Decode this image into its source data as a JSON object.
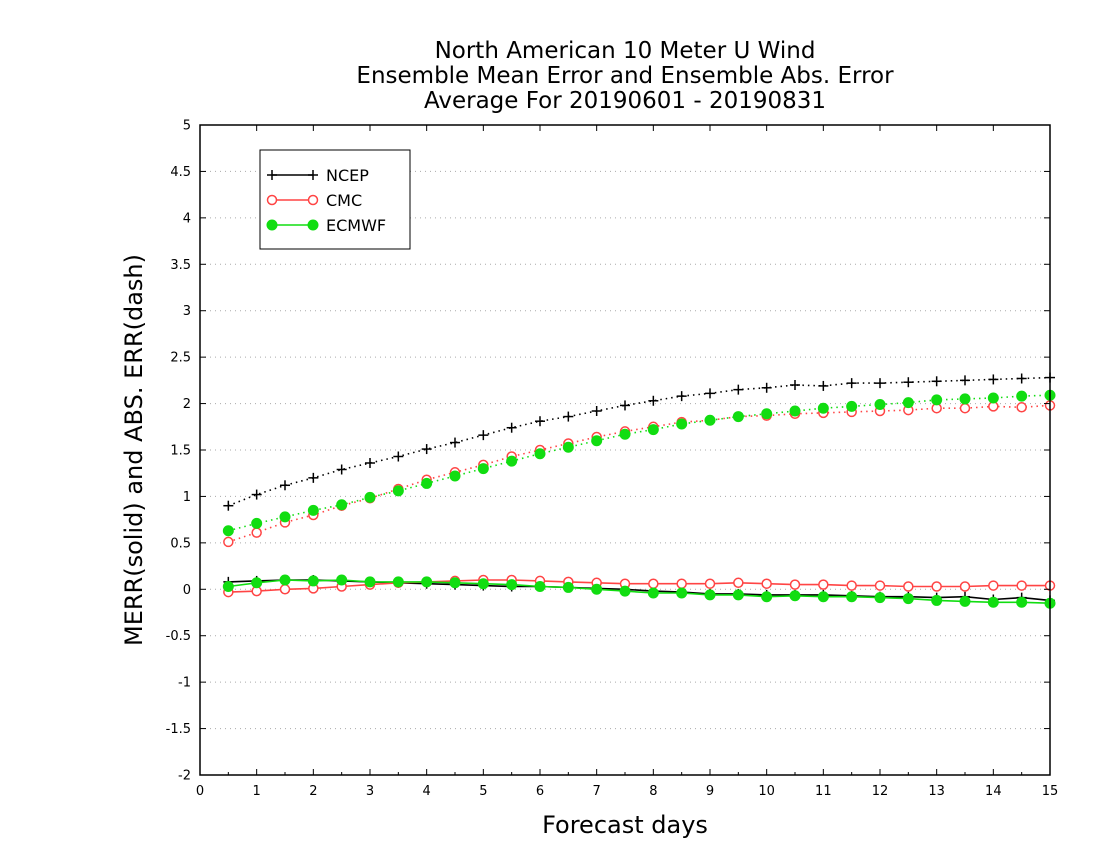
{
  "chart_data": {
    "type": "line",
    "title": [
      "North American 10 Meter U Wind",
      "Ensemble Mean Error and Ensemble Abs. Error",
      "Average For 20190601 - 20190831"
    ],
    "xlabel": "Forecast days",
    "ylabel": "MERR(solid) and ABS. ERR(dash)",
    "xlim": [
      0,
      15
    ],
    "ylim": [
      -2,
      5
    ],
    "xticks": [
      0,
      1,
      2,
      3,
      4,
      5,
      6,
      7,
      8,
      9,
      10,
      11,
      12,
      13,
      14,
      15
    ],
    "xtick_labels": [
      "0",
      "1",
      "2",
      "3",
      "4",
      "5",
      "6",
      "7",
      "8",
      "9",
      "10",
      "11",
      "12",
      "13",
      "14",
      "15"
    ],
    "yticks": [
      -2,
      -1.5,
      -1,
      -0.5,
      0,
      0.5,
      1,
      1.5,
      2,
      2.5,
      3,
      3.5,
      4,
      4.5,
      5
    ],
    "ytick_labels": [
      "-2",
      "-1.5",
      "-1",
      "-0.5",
      "0",
      "0.5",
      "1",
      "1.5",
      "2",
      "2.5",
      "3",
      "3.5",
      "4",
      "4.5",
      "5"
    ],
    "grid": "horizontal dotted",
    "legend_position": "top-left",
    "x": [
      0.5,
      1,
      1.5,
      2,
      2.5,
      3,
      3.5,
      4,
      4.5,
      5,
      5.5,
      6,
      6.5,
      7,
      7.5,
      8,
      8.5,
      9,
      9.5,
      10,
      10.5,
      11,
      11.5,
      12,
      12.5,
      13,
      13.5,
      14,
      14.5,
      15
    ],
    "series": [
      {
        "name": "NCEP",
        "color": "#000000",
        "marker": "plus",
        "merr": [
          0.08,
          0.09,
          0.1,
          0.1,
          0.09,
          0.08,
          0.07,
          0.06,
          0.05,
          0.04,
          0.03,
          0.03,
          0.02,
          0.01,
          0.0,
          -0.02,
          -0.03,
          -0.05,
          -0.05,
          -0.06,
          -0.06,
          -0.06,
          -0.07,
          -0.08,
          -0.08,
          -0.09,
          -0.08,
          -0.11,
          -0.09,
          -0.12
        ],
        "abs_err": [
          0.9,
          1.02,
          1.12,
          1.2,
          1.29,
          1.36,
          1.43,
          1.51,
          1.58,
          1.66,
          1.74,
          1.81,
          1.86,
          1.92,
          1.98,
          2.03,
          2.08,
          2.11,
          2.15,
          2.17,
          2.2,
          2.19,
          2.22,
          2.22,
          2.23,
          2.24,
          2.25,
          2.26,
          2.27,
          2.28
        ]
      },
      {
        "name": "CMC",
        "color": "#ff4444",
        "marker": "open-circle",
        "merr": [
          -0.03,
          -0.02,
          0.0,
          0.01,
          0.03,
          0.05,
          0.07,
          0.08,
          0.09,
          0.1,
          0.1,
          0.09,
          0.08,
          0.07,
          0.06,
          0.06,
          0.06,
          0.06,
          0.07,
          0.06,
          0.05,
          0.05,
          0.04,
          0.04,
          0.03,
          0.03,
          0.03,
          0.04,
          0.04,
          0.04
        ],
        "abs_err": [
          0.51,
          0.61,
          0.72,
          0.8,
          0.9,
          0.98,
          1.08,
          1.18,
          1.26,
          1.34,
          1.43,
          1.5,
          1.57,
          1.64,
          1.7,
          1.75,
          1.8,
          1.82,
          1.86,
          1.87,
          1.89,
          1.9,
          1.91,
          1.92,
          1.93,
          1.95,
          1.95,
          1.97,
          1.96,
          1.98
        ]
      },
      {
        "name": "ECMWF",
        "color": "#11dd11",
        "marker": "filled-circle",
        "merr": [
          0.03,
          0.07,
          0.1,
          0.09,
          0.1,
          0.08,
          0.08,
          0.08,
          0.07,
          0.06,
          0.05,
          0.03,
          0.02,
          0.0,
          -0.02,
          -0.04,
          -0.04,
          -0.06,
          -0.06,
          -0.08,
          -0.07,
          -0.08,
          -0.08,
          -0.09,
          -0.1,
          -0.12,
          -0.13,
          -0.14,
          -0.14,
          -0.15
        ],
        "abs_err": [
          0.63,
          0.71,
          0.78,
          0.85,
          0.91,
          0.99,
          1.06,
          1.14,
          1.22,
          1.3,
          1.38,
          1.46,
          1.53,
          1.6,
          1.67,
          1.72,
          1.78,
          1.82,
          1.86,
          1.89,
          1.92,
          1.95,
          1.97,
          1.99,
          2.01,
          2.04,
          2.05,
          2.06,
          2.08,
          2.09
        ]
      }
    ]
  }
}
